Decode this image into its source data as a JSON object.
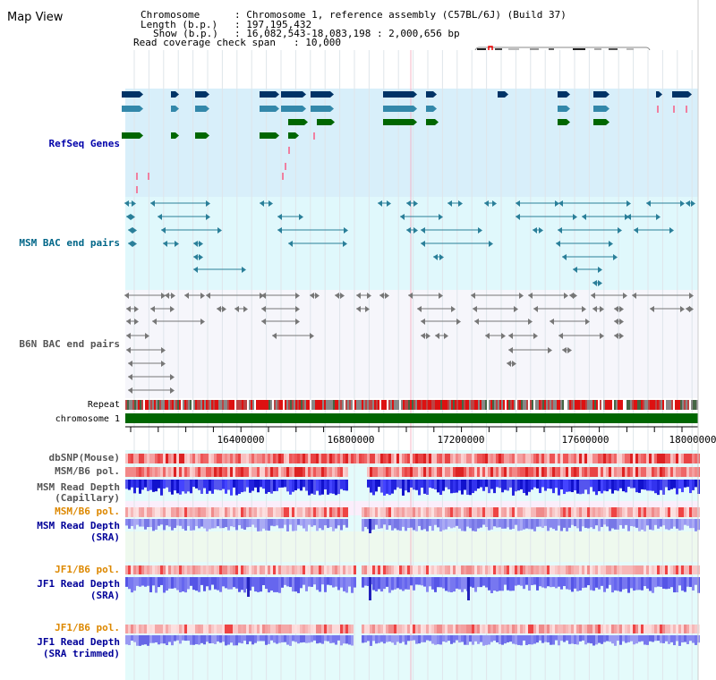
{
  "page": {
    "title": "Map View"
  },
  "header": {
    "chromosome_key": "Chromosome",
    "chromosome_value": ": Chromosome 1, reference assembly (C57BL/6J) (Build 37)",
    "length_key": "Length (b.p.)",
    "length_value": ": 197,195,432",
    "show_key": "Show (b.p.)",
    "show_value": ": 16,082,543-18,083,198 : 2,000,656 bp",
    "coverage_key": "Read coverage check span",
    "coverage_value": ": 10,000"
  },
  "tracks": {
    "refseq": "RefSeq Genes",
    "msm_bac": "MSM BAC end pairs",
    "b6n_bac": "B6N BAC end pairs",
    "repeat": "Repeat",
    "chromosome": "chromosome 1",
    "dbsnp": "dbSNP(Mouse)",
    "msm_b6_pol_1": "MSM/B6 pol.",
    "msm_read_depth_cap_1": "MSM Read Depth",
    "msm_read_depth_cap_2": "(Capillary)",
    "msm_b6_pol_2": "MSM/B6 pol.",
    "msm_read_depth_sra_1": "MSM Read Depth",
    "msm_read_depth_sra_2": "(SRA)",
    "jf1_b6_pol_1": "JF1/B6 pol.",
    "jf1_read_depth_sra_1": "JF1 Read Depth",
    "jf1_read_depth_sra_2": "(SRA)",
    "jf1_b6_pol_2": "JF1/B6 pol.",
    "jf1_read_depth_trim_1": "JF1 Read Depth",
    "jf1_read_depth_trim_2": "(SRA trimmed)"
  },
  "axis": {
    "ticks": [
      "16400000",
      "16800000",
      "17200000",
      "17600000",
      "18000000"
    ]
  },
  "colors": {
    "refseq_label": "#0000aa",
    "msm_bac_label": "#006688",
    "b6n_label": "#555555",
    "pol_label_orange": "#dd8800",
    "read_depth_label": "#000099",
    "chromosome_bar": "#006600"
  }
}
